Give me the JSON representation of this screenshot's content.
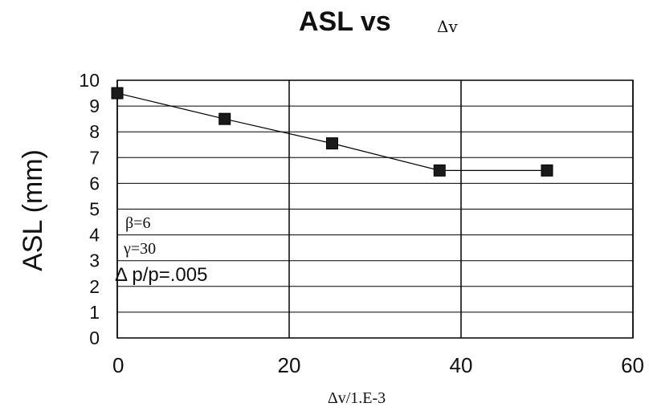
{
  "chart_data": {
    "type": "line",
    "title": "ASL vs",
    "title_symbol": "Δv",
    "xlabel": "Δv/1.E-3",
    "ylabel": "ASL (mm)",
    "xlim": [
      0,
      60
    ],
    "ylim": [
      0,
      10
    ],
    "xticks": [
      0,
      20,
      40,
      60
    ],
    "yticks": [
      0,
      1,
      2,
      3,
      4,
      5,
      6,
      7,
      8,
      9,
      10
    ],
    "grid": true,
    "series": [
      {
        "x": [
          0,
          12.5,
          25,
          37.5,
          50
        ],
        "y": [
          9.5,
          8.5,
          7.55,
          6.5,
          6.5
        ]
      }
    ],
    "annotations": [
      "β=6",
      "γ=30",
      "Δ p/p=.005"
    ],
    "colors": {
      "line": "#000000",
      "marker": "#1a1a1a",
      "grid": "#000000",
      "background": "#ffffff"
    }
  }
}
